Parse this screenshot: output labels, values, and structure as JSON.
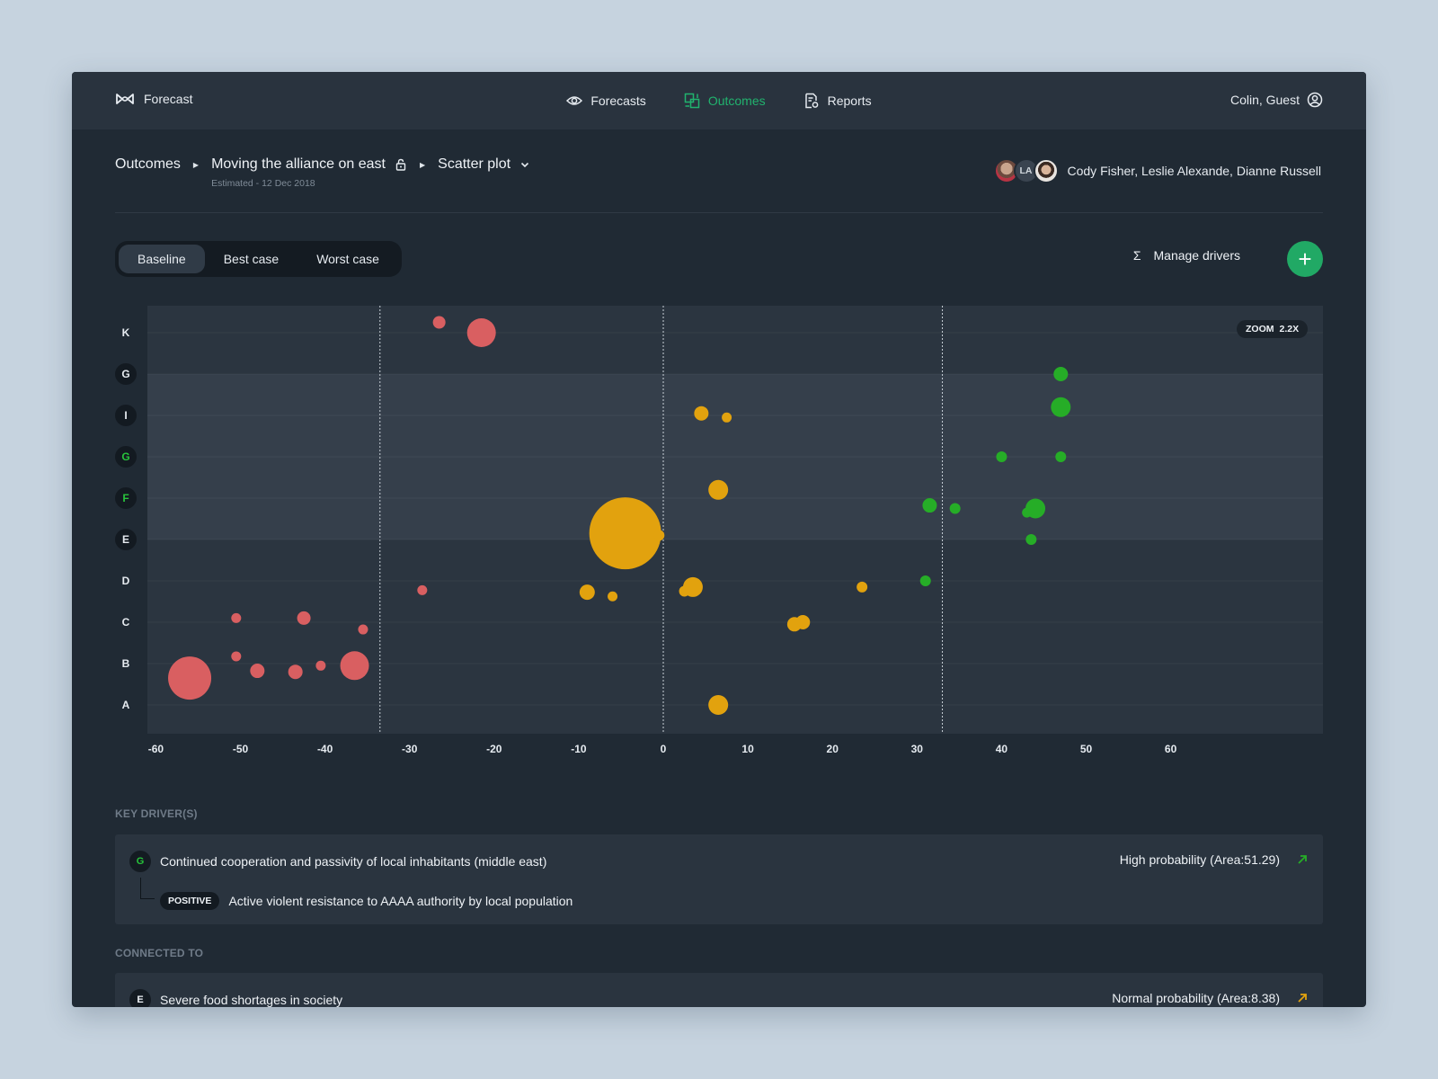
{
  "app": {
    "brand_name": "Forecast",
    "brand_icon": "infinity-logo-icon"
  },
  "nav": {
    "items": [
      {
        "label": "Forecasts",
        "icon": "eye-icon"
      },
      {
        "label": "Outcomes",
        "icon": "outcomes-icon",
        "active": true
      },
      {
        "label": "Reports",
        "icon": "report-icon"
      }
    ]
  },
  "user": {
    "name": "Colin, Guest",
    "icon": "user-circle-icon"
  },
  "breadcrumb": {
    "root": "Outcomes",
    "scenario": "Moving the alliance on east",
    "scenario_sub": "Estimated - 12 Dec 2018",
    "view": "Scatter plot"
  },
  "collaborators": {
    "initials": "LA",
    "names": "Cody Fisher, Leslie Alexande, Dianne Russell"
  },
  "cases": {
    "tabs": [
      "Baseline",
      "Best case",
      "Worst case"
    ],
    "active": "Baseline"
  },
  "toolbar": {
    "manage_drivers": "Manage drivers",
    "sigma": "Σ",
    "add": "+"
  },
  "zoom": {
    "label": "ZOOM",
    "value": "2.2X"
  },
  "colors": {
    "negative": "#d95f61",
    "neutral": "#e2a20e",
    "positive": "#26ad27",
    "accent": "#21b36e"
  },
  "chart_data": {
    "type": "scatter",
    "x_ticks": [
      -60,
      -50,
      -40,
      -30,
      -20,
      -10,
      0,
      10,
      20,
      30,
      40,
      50,
      60
    ],
    "xlim": [
      -61,
      78
    ],
    "y_categories": [
      "K",
      "G",
      "I",
      "G",
      "F",
      "E",
      "D",
      "C",
      "B",
      "A"
    ],
    "reference_lines_x": [
      -33.5,
      0,
      33
    ],
    "points": [
      {
        "x": -21.5,
        "y": "K",
        "r": 16,
        "group": "negative"
      },
      {
        "x": -26.5,
        "y": "K",
        "r": 7,
        "group": "negative"
      },
      {
        "x": -56,
        "y": "B",
        "r": 24,
        "group": "negative"
      },
      {
        "x": -50.5,
        "y": "C",
        "r": 5.5,
        "group": "negative"
      },
      {
        "x": -48,
        "y": "B",
        "r": 8,
        "group": "negative"
      },
      {
        "x": -50.5,
        "y": "B",
        "r": 5.5,
        "group": "negative"
      },
      {
        "x": -43.5,
        "y": "B",
        "r": 8,
        "group": "negative"
      },
      {
        "x": -42.5,
        "y": "C",
        "r": 7.5,
        "group": "negative"
      },
      {
        "x": -40.5,
        "y": "B",
        "r": 5.5,
        "group": "negative"
      },
      {
        "x": -35.5,
        "y": "C",
        "r": 5.5,
        "group": "negative"
      },
      {
        "x": -36.5,
        "y": "B",
        "r": 16,
        "group": "negative"
      },
      {
        "x": -28.5,
        "y": "D",
        "r": 5.5,
        "group": "negative"
      },
      {
        "x": -4.5,
        "y": "E",
        "r": 40,
        "group": "neutral"
      },
      {
        "x": 4.5,
        "y": "I",
        "r": 8,
        "group": "neutral"
      },
      {
        "x": 7.5,
        "y": "I",
        "r": 5.5,
        "group": "neutral"
      },
      {
        "x": 6.5,
        "y": "F",
        "r": 11,
        "group": "neutral"
      },
      {
        "x": -0.5,
        "y": "E",
        "r": 6,
        "group": "neutral"
      },
      {
        "x": 3.5,
        "y": "D",
        "r": 11,
        "group": "neutral"
      },
      {
        "x": 2.5,
        "y": "D",
        "r": 6,
        "group": "neutral"
      },
      {
        "x": -9,
        "y": "D",
        "r": 8.5,
        "group": "neutral"
      },
      {
        "x": -6,
        "y": "D",
        "r": 5.5,
        "group": "neutral"
      },
      {
        "x": 23.5,
        "y": "D",
        "r": 6,
        "group": "neutral"
      },
      {
        "x": 16.5,
        "y": "C",
        "r": 8,
        "group": "neutral"
      },
      {
        "x": 15.5,
        "y": "C",
        "r": 8,
        "group": "neutral"
      },
      {
        "x": 6.5,
        "y": "A",
        "r": 11,
        "group": "neutral"
      },
      {
        "x": 47,
        "y": "G",
        "r": 8,
        "group": "positive"
      },
      {
        "x": 47,
        "y": "I",
        "r": 11,
        "group": "positive"
      },
      {
        "x": 40,
        "y": "G",
        "r": 6,
        "group": "positive"
      },
      {
        "x": 47,
        "y": "G",
        "r": 6,
        "group": "positive"
      },
      {
        "x": 44,
        "y": "F",
        "r": 11,
        "group": "positive"
      },
      {
        "x": 43,
        "y": "F",
        "r": 5.5,
        "group": "positive"
      },
      {
        "x": 31.5,
        "y": "F",
        "r": 8,
        "group": "positive"
      },
      {
        "x": 34.5,
        "y": "F",
        "r": 6,
        "group": "positive"
      },
      {
        "x": 43.5,
        "y": "E",
        "r": 6,
        "group": "positive"
      },
      {
        "x": 31,
        "y": "D",
        "r": 6,
        "group": "positive"
      }
    ]
  },
  "key_drivers": {
    "title": "KEY DRIVER(S)",
    "item": {
      "tag": "G",
      "text": "Continued cooperation and passivity of local inhabitants (middle east)",
      "probability": "High probability (Area:51.29)",
      "sub_badge": "POSITIVE",
      "sub_text": "Active violent resistance to AAAA authority by local population"
    }
  },
  "connected": {
    "title": "CONNECTED TO",
    "item": {
      "tag": "E",
      "text": "Severe food shortages in society",
      "probability": "Normal probability (Area:8.38)"
    }
  }
}
